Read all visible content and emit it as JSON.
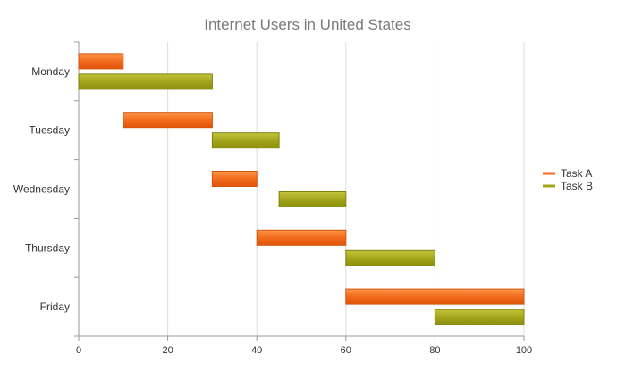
{
  "chart_data": {
    "type": "bar",
    "orientation": "horizontal",
    "subtype": "range-bar",
    "title": "Internet Users in United States",
    "categories": [
      "Monday",
      "Tuesday",
      "Wednesday",
      "Thursday",
      "Friday"
    ],
    "xlim": [
      0,
      100
    ],
    "xticks": [
      0,
      20,
      40,
      60,
      80,
      100
    ],
    "grid": "vertical",
    "legend_position": "right",
    "series": [
      {
        "name": "Task A",
        "color": "#f26a1b",
        "ranges": [
          [
            0,
            10
          ],
          [
            10,
            30
          ],
          [
            30,
            40
          ],
          [
            40,
            60
          ],
          [
            60,
            100
          ]
        ]
      },
      {
        "name": "Task B",
        "color": "#a3a51a",
        "ranges": [
          [
            0,
            30
          ],
          [
            30,
            45
          ],
          [
            45,
            60
          ],
          [
            60,
            80
          ],
          [
            80,
            100
          ]
        ]
      }
    ]
  }
}
